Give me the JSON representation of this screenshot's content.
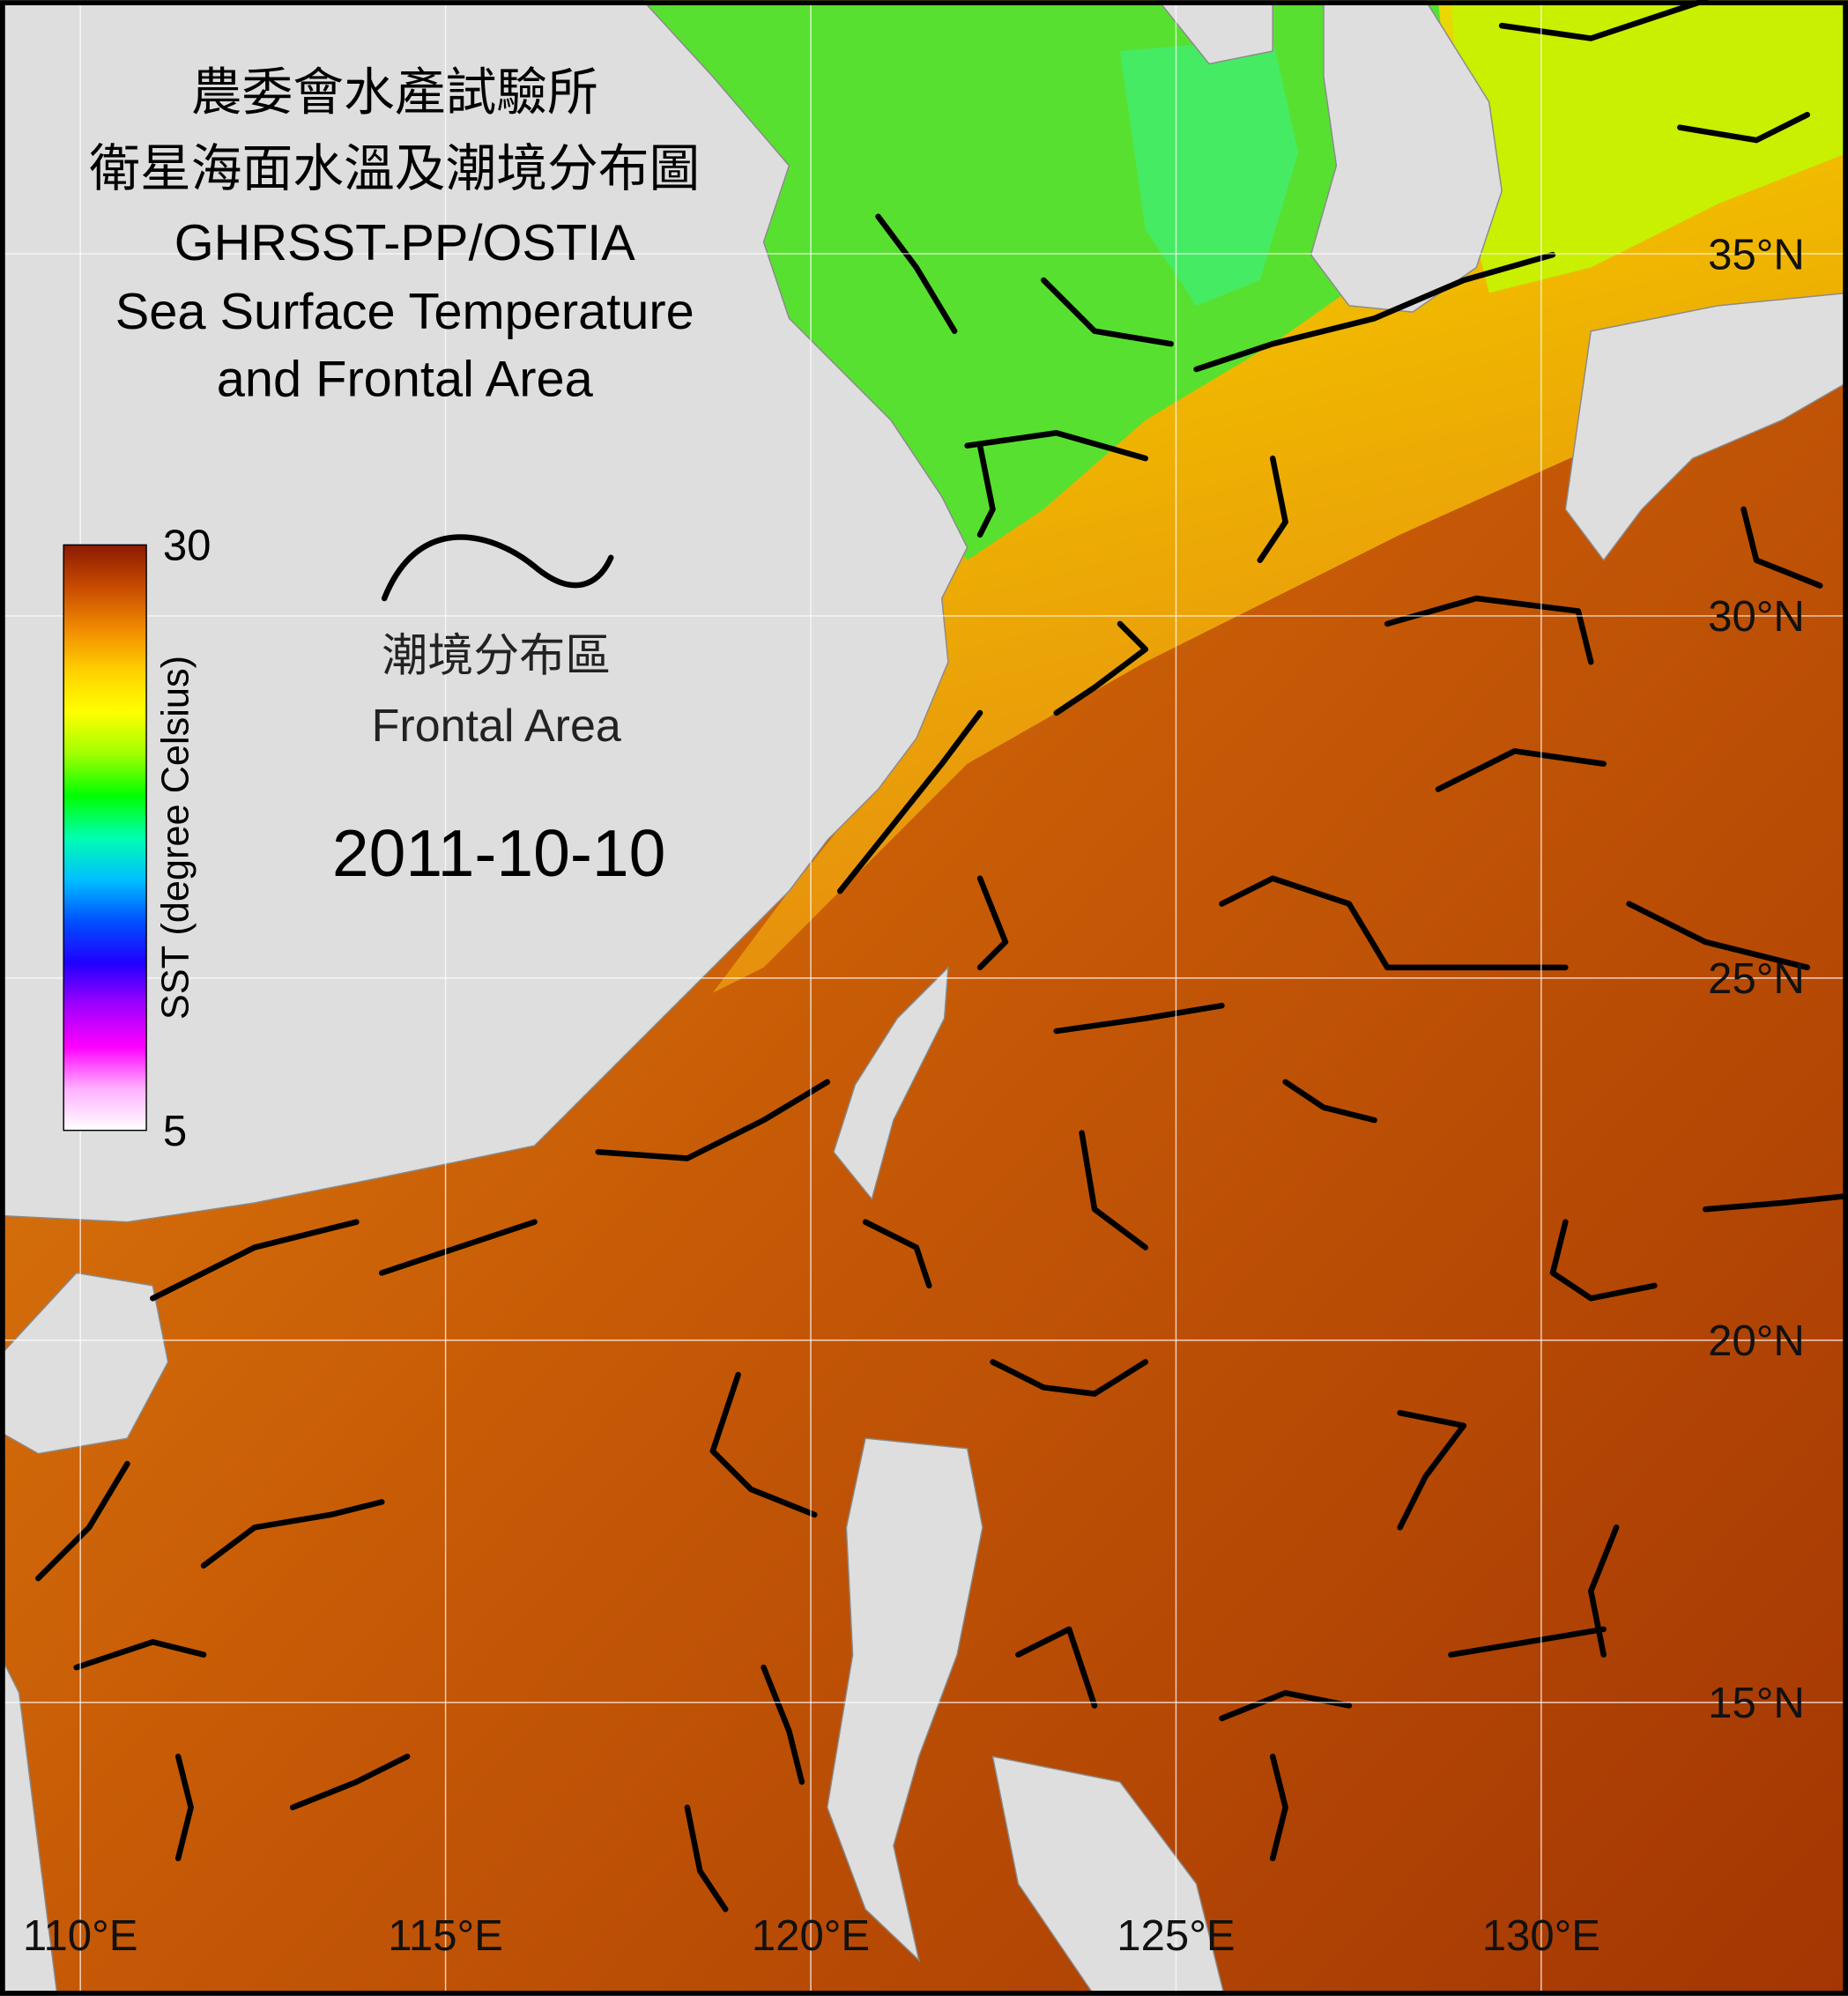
{
  "header": {
    "title_lines": [
      "農委會水產試驗所",
      "衛星海面水溫及潮境分布圖",
      "GHRSST-PP/OSTIA",
      "Sea Surface Temperature",
      "and Frontal Area"
    ]
  },
  "colorbar": {
    "label": "SST (degree Celsius)",
    "range": [
      5,
      30
    ],
    "ticks": [
      30,
      5
    ],
    "colors": [
      "#ffffff",
      "#ffb0ff",
      "#ff00ff",
      "#a000ff",
      "#2000ff",
      "#0050ff",
      "#00c0ff",
      "#00ffb0",
      "#00ff00",
      "#a0ff00",
      "#ffff00",
      "#ffd000",
      "#f08a00",
      "#c84a00",
      "#8b1a00"
    ]
  },
  "legend": {
    "title_zh": "潮境分布區",
    "title_en": "Frontal Area"
  },
  "date": "2011-10-10",
  "map": {
    "lon_range": [
      108.9,
      134.2
    ],
    "lat_range": [
      10.95,
      38.5
    ],
    "lon_ticks": [
      {
        "value": 110,
        "label": "110°E"
      },
      {
        "value": 115,
        "label": "115°E"
      },
      {
        "value": 120,
        "label": "120°E"
      },
      {
        "value": 125,
        "label": "125°E"
      },
      {
        "value": 130,
        "label": "130°E"
      }
    ],
    "lat_ticks": [
      {
        "value": 35,
        "label": "35°N"
      },
      {
        "value": 30,
        "label": "30°N"
      },
      {
        "value": 25,
        "label": "25°N"
      },
      {
        "value": 20,
        "label": "20°N"
      },
      {
        "value": 15,
        "label": "15°N"
      }
    ]
  }
}
